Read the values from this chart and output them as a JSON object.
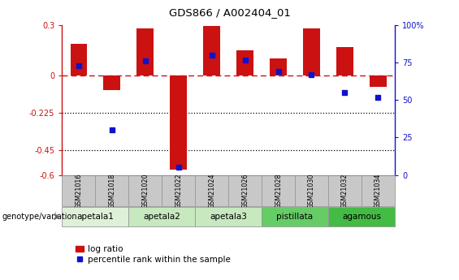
{
  "title": "GDS866 / A002404_01",
  "categories": [
    "GSM21016",
    "GSM21018",
    "GSM21020",
    "GSM21022",
    "GSM21024",
    "GSM21026",
    "GSM21028",
    "GSM21030",
    "GSM21032",
    "GSM21034"
  ],
  "log_ratio": [
    0.19,
    -0.09,
    0.28,
    -0.57,
    0.295,
    0.15,
    0.1,
    0.28,
    0.17,
    -0.07
  ],
  "percentile_rank": [
    73,
    30,
    76,
    5,
    80,
    77,
    69,
    67,
    55,
    52
  ],
  "ylim_left": [
    -0.6,
    0.3
  ],
  "ylim_right": [
    0,
    100
  ],
  "yticks_left": [
    0.3,
    0.0,
    -0.225,
    -0.45,
    -0.6
  ],
  "ytick_labels_left": [
    "0.3",
    "0",
    "-0.225",
    "-0.45",
    "-0.6"
  ],
  "yticks_right": [
    100,
    75,
    50,
    25,
    0
  ],
  "ytick_labels_right": [
    "100%",
    "75",
    "50",
    "25",
    "0"
  ],
  "hlines_dotted": [
    -0.225,
    -0.45
  ],
  "bar_color": "#cc1111",
  "dot_color": "#1111cc",
  "zero_line_color": "#cc1111",
  "groups": [
    {
      "label": "apetala1",
      "indices": [
        0,
        1
      ],
      "color": "#dff0d8"
    },
    {
      "label": "apetala2",
      "indices": [
        2,
        3
      ],
      "color": "#c8e8c0"
    },
    {
      "label": "apetala3",
      "indices": [
        4,
        5
      ],
      "color": "#c8e8c0"
    },
    {
      "label": "pistillata",
      "indices": [
        6,
        7
      ],
      "color": "#66cc66"
    },
    {
      "label": "agamous",
      "indices": [
        8,
        9
      ],
      "color": "#44bb44"
    }
  ],
  "legend_bar_label": "log ratio",
  "legend_dot_label": "percentile rank within the sample",
  "genotype_label": "genotype/variation",
  "bar_width": 0.5,
  "dot_size": 5,
  "gsm_box_color": "#c8c8c8",
  "gsm_border_color": "#999999",
  "group_border_color": "#999999"
}
